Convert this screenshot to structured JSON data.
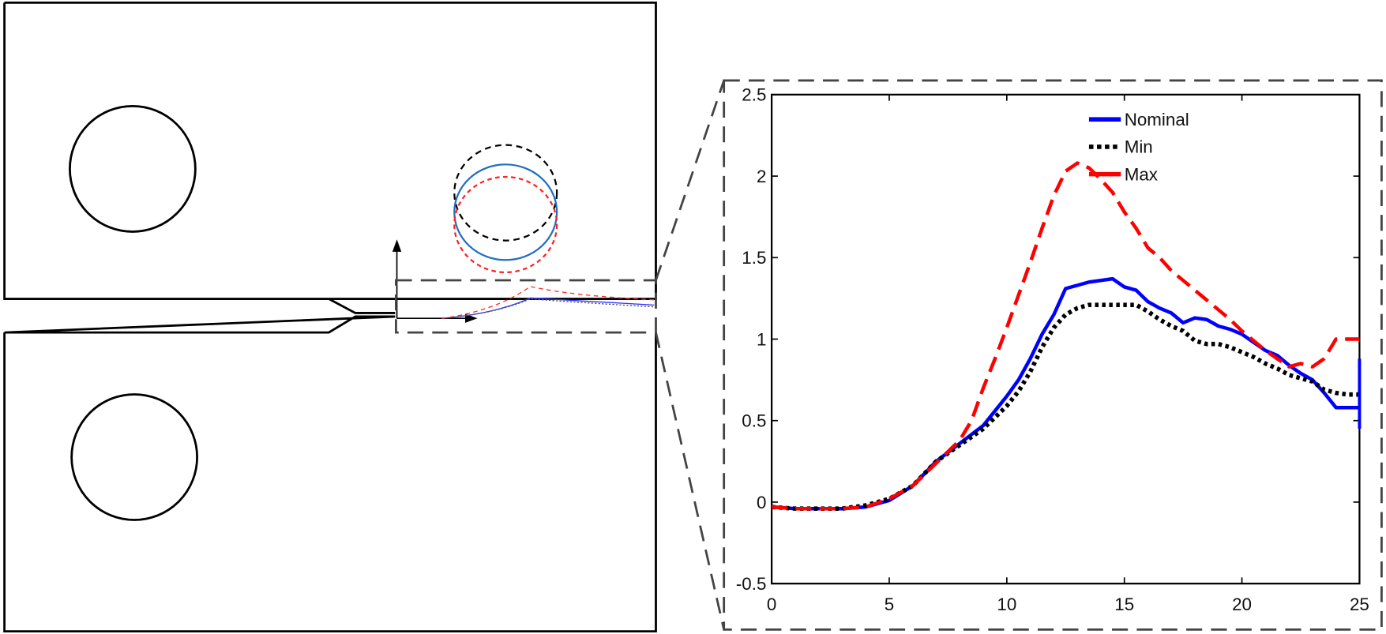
{
  "figure": {
    "description": "Specimen schematic with zoomed crack-path plot"
  },
  "chart_data": {
    "type": "line",
    "title": "",
    "xlabel": "",
    "ylabel": "",
    "xlim": [
      0,
      25
    ],
    "ylim": [
      -0.5,
      2.5
    ],
    "xticks": [
      "0",
      "5",
      "10",
      "15",
      "20",
      "25"
    ],
    "yticks": [
      "-0.5",
      "0",
      "0.5",
      "1",
      "1.5",
      "2",
      "2.5"
    ],
    "grid": false,
    "legend_position": "upper right",
    "series": [
      {
        "name": "Nominal",
        "color": "#0000ff",
        "style": "solid",
        "x": [
          0,
          1,
          2,
          3,
          4,
          5,
          6,
          7,
          8,
          9,
          10,
          10.5,
          11,
          11.5,
          12,
          12.5,
          13,
          13.5,
          14,
          14.5,
          15,
          15.5,
          16,
          16.5,
          17,
          17.5,
          18,
          18.5,
          19,
          19.5,
          20,
          20.5,
          21,
          21.5,
          22,
          22.5,
          23,
          23.5,
          24,
          24.5,
          25
        ],
        "y": [
          -0.03,
          -0.04,
          -0.04,
          -0.04,
          -0.03,
          0.01,
          0.1,
          0.25,
          0.36,
          0.47,
          0.65,
          0.75,
          0.88,
          1.03,
          1.15,
          1.31,
          1.33,
          1.35,
          1.36,
          1.37,
          1.32,
          1.3,
          1.23,
          1.19,
          1.16,
          1.1,
          1.13,
          1.12,
          1.08,
          1.06,
          1.03,
          0.98,
          0.93,
          0.9,
          0.84,
          0.79,
          0.75,
          0.67,
          0.58,
          0.58,
          0.58
        ]
      },
      {
        "name": "Min",
        "color": "#000000",
        "style": "dotted",
        "x": [
          0,
          1,
          2,
          3,
          4,
          5,
          6,
          7,
          8,
          9,
          10,
          10.5,
          11,
          11.5,
          12,
          12.5,
          13,
          13.5,
          14,
          14.5,
          15,
          15.5,
          16,
          16.5,
          17,
          17.5,
          18,
          18.5,
          19,
          19.5,
          20,
          20.5,
          21,
          21.5,
          22,
          22.5,
          23,
          23.5,
          24,
          24.5,
          25
        ],
        "y": [
          -0.03,
          -0.04,
          -0.04,
          -0.04,
          -0.02,
          0.02,
          0.1,
          0.25,
          0.35,
          0.45,
          0.59,
          0.68,
          0.8,
          0.95,
          1.07,
          1.15,
          1.19,
          1.21,
          1.21,
          1.21,
          1.21,
          1.21,
          1.17,
          1.12,
          1.08,
          1.05,
          0.99,
          0.97,
          0.97,
          0.95,
          0.92,
          0.89,
          0.85,
          0.82,
          0.78,
          0.76,
          0.74,
          0.69,
          0.67,
          0.66,
          0.66
        ]
      },
      {
        "name": "Max",
        "color": "#ff0000",
        "style": "dashed",
        "x": [
          0,
          1,
          2,
          3,
          4,
          5,
          6,
          7,
          8,
          8.5,
          9,
          9.5,
          10,
          10.5,
          11,
          11.5,
          12,
          12.5,
          13,
          13.5,
          14,
          14.5,
          15,
          15.5,
          16,
          16.5,
          17,
          17.5,
          18,
          18.5,
          19,
          19.5,
          20,
          20.5,
          21,
          21.5,
          22,
          22.5,
          23,
          23.5,
          24,
          24.5,
          25
        ],
        "y": [
          -0.03,
          -0.04,
          -0.04,
          -0.04,
          -0.03,
          0.02,
          0.1,
          0.24,
          0.38,
          0.5,
          0.7,
          0.88,
          1.07,
          1.27,
          1.47,
          1.68,
          1.88,
          2.03,
          2.08,
          2.05,
          1.98,
          1.9,
          1.78,
          1.68,
          1.56,
          1.5,
          1.42,
          1.36,
          1.3,
          1.24,
          1.18,
          1.12,
          1.05,
          0.99,
          0.93,
          0.88,
          0.83,
          0.85,
          0.83,
          0.88,
          1.0,
          1.0,
          1.0
        ]
      }
    ]
  },
  "legend": {
    "items": [
      {
        "label": "Nominal",
        "color": "#0000ff"
      },
      {
        "label": "Min",
        "color": "#000000"
      },
      {
        "label": "Max",
        "color": "#ff0000"
      }
    ]
  },
  "schematic": {
    "circle_colors": {
      "nominal": "#1f6fc0",
      "min": "#000000",
      "max": "#ff2020"
    }
  }
}
